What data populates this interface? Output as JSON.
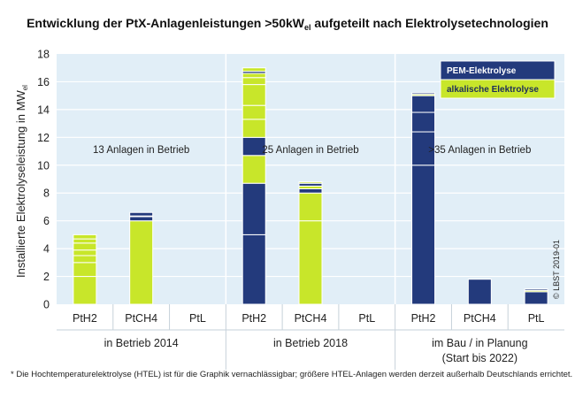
{
  "chart_data": {
    "type": "bar",
    "stacked": true,
    "title": "Entwicklung der PtX-Anlagenleistungen >50kW",
    "title_sub": "el",
    "title_rest": " aufgeteilt nach Elektrolysetechnologien",
    "ylabel": "Installierte Elektrolyseleistung in MW",
    "ylabel_sub": "el",
    "ylim": [
      0,
      18
    ],
    "yticks": [
      "0",
      "2",
      "4",
      "6",
      "8",
      "10",
      "12",
      "14",
      "16",
      "18"
    ],
    "groups": [
      {
        "label": "in Betrieb 2014",
        "annotation": "13 Anlagen in Betrieb",
        "categories": [
          "PtH2",
          "PtCH4",
          "PtL"
        ]
      },
      {
        "label": "in Betrieb 2018",
        "annotation": "25 Anlagen in Betrieb",
        "categories": [
          "PtH2",
          "PtCH4",
          "PtL"
        ]
      },
      {
        "label": "im Bau / in Planung",
        "label2": "(Start bis 2022)",
        "annotation": ">35 Anlagen in Betrieb",
        "categories": [
          "PtH2",
          "PtCH4",
          "PtL"
        ]
      }
    ],
    "legend": {
      "placement": "top-right",
      "entries": [
        "PEM-Elektrolyse",
        "alkalische Elektrolyse"
      ]
    },
    "series": [
      {
        "name": "PEM-Elektrolyse",
        "color": "#233a7c"
      },
      {
        "name": "alkalische Elektrolyse",
        "color": "#c8e62a"
      }
    ],
    "bars": [
      {
        "group": 0,
        "category": "PtH2",
        "segments": [
          {
            "series": 1,
            "value": 2.0
          },
          {
            "series": 1,
            "value": 1.0
          },
          {
            "series": 1,
            "value": 0.5
          },
          {
            "series": 1,
            "value": 0.4
          },
          {
            "series": 1,
            "value": 0.5
          },
          {
            "series": 1,
            "value": 0.3
          },
          {
            "series": 1,
            "value": 0.3
          }
        ]
      },
      {
        "group": 0,
        "category": "PtCH4",
        "segments": [
          {
            "series": 1,
            "value": 6.0
          },
          {
            "series": 0,
            "value": 0.3
          },
          {
            "series": 1,
            "value": 0.05
          },
          {
            "series": 0,
            "value": 0.25
          }
        ]
      },
      {
        "group": 0,
        "category": "PtL",
        "segments": []
      },
      {
        "group": 1,
        "category": "PtH2",
        "segments": [
          {
            "series": 0,
            "value": 5.0
          },
          {
            "series": 0,
            "value": 3.7
          },
          {
            "series": 1,
            "value": 2.0
          },
          {
            "series": 0,
            "value": 1.3
          },
          {
            "series": 1,
            "value": 1.3
          },
          {
            "series": 1,
            "value": 1.0
          },
          {
            "series": 1,
            "value": 1.5
          },
          {
            "series": 1,
            "value": 0.5
          },
          {
            "series": 1,
            "value": 0.3
          },
          {
            "series": 0,
            "value": 0.15
          },
          {
            "series": 1,
            "value": 0.25
          }
        ]
      },
      {
        "group": 1,
        "category": "PtCH4",
        "segments": [
          {
            "series": 1,
            "value": 6.0
          },
          {
            "series": 1,
            "value": 2.0
          },
          {
            "series": 0,
            "value": 0.3
          },
          {
            "series": 1,
            "value": 0.2
          },
          {
            "series": 0,
            "value": 0.2
          },
          {
            "series": 1,
            "value": 0.1
          }
        ]
      },
      {
        "group": 1,
        "category": "PtL",
        "segments": []
      },
      {
        "group": 2,
        "category": "PtH2",
        "segments": [
          {
            "series": 0,
            "value": 10.0
          },
          {
            "series": 0,
            "value": 2.4
          },
          {
            "series": 0,
            "value": 1.4
          },
          {
            "series": 0,
            "value": 1.2
          },
          {
            "series": 1,
            "value": 0.1
          },
          {
            "series": 0,
            "value": 0.1
          }
        ]
      },
      {
        "group": 2,
        "category": "PtCH4",
        "segments": [
          {
            "series": 0,
            "value": 1.8
          }
        ]
      },
      {
        "group": 2,
        "category": "PtL",
        "segments": [
          {
            "series": 0,
            "value": 0.9
          },
          {
            "series": 1,
            "value": 0.1
          },
          {
            "series": 0,
            "value": 0.1
          }
        ]
      }
    ],
    "footnote": "* Die Hochtemperaturelektrolyse (HTEL)  ist für die Graphik vernachlässigbar; größere HTEL-Anlagen werden derzeit außerhalb Deutschlands errichtet.",
    "copyright": "© LBST 2019-01"
  }
}
